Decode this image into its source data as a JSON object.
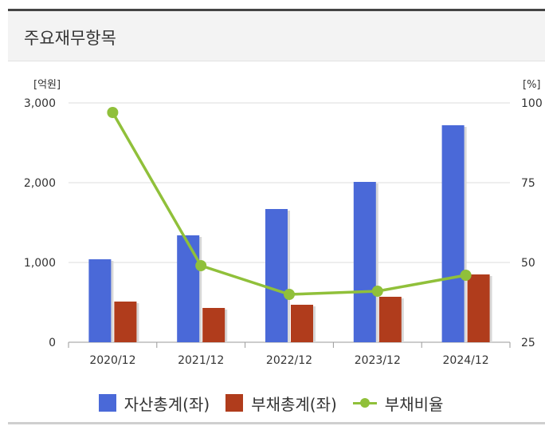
{
  "header": {
    "title": "주요재무항목"
  },
  "colors": {
    "assets": "#4A69D8",
    "liabilities": "#B03C1C",
    "ratio": "#90C03A"
  },
  "chart_data": {
    "type": "bar",
    "categories": [
      "2020/12",
      "2021/12",
      "2022/12",
      "2023/12",
      "2024/12"
    ],
    "series": [
      {
        "name": "자산총계(좌)",
        "type": "bar",
        "axis": "left",
        "values": [
          1040,
          1340,
          1670,
          2010,
          2720
        ]
      },
      {
        "name": "부채총계(좌)",
        "type": "bar",
        "axis": "left",
        "values": [
          510,
          430,
          470,
          570,
          850
        ]
      },
      {
        "name": "부채비율",
        "type": "line",
        "axis": "right",
        "values": [
          97,
          49,
          40,
          41,
          46
        ]
      }
    ],
    "y_left": {
      "unit": "[억원]",
      "ylim": [
        0,
        3000
      ],
      "ticks": [
        "0",
        "1,000",
        "2,000",
        "3,000"
      ]
    },
    "y_right": {
      "unit": "[%]",
      "ylim": [
        25,
        100
      ],
      "ticks": [
        "25",
        "50",
        "75",
        "100"
      ]
    },
    "grid": true,
    "legend": "bottom"
  }
}
